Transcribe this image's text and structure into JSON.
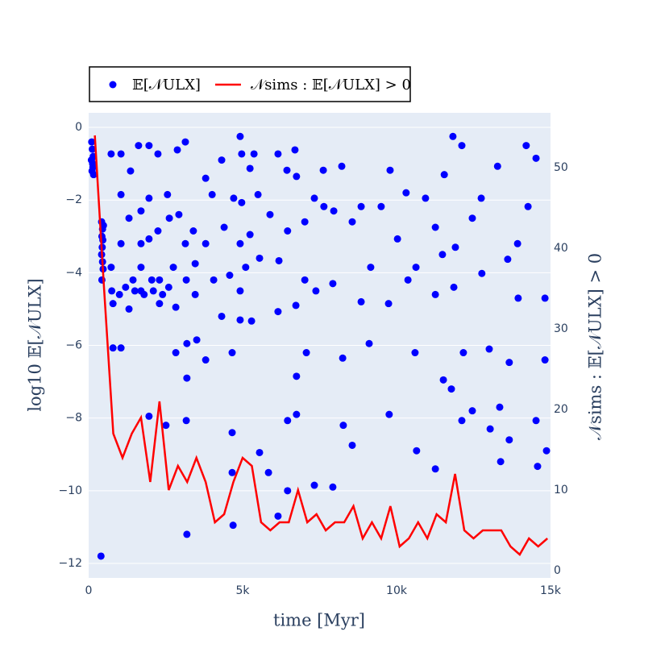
{
  "chart_data": {
    "type": "scatter",
    "xlabel": "time [Myr]",
    "ylabel": "log10 𝔼[𝒩ULX]",
    "y2label": "𝒩sims : 𝔼[𝒩ULX] > 0",
    "xlim": [
      0,
      15000
    ],
    "ylim": [
      -12.4,
      0.4
    ],
    "y2lim": [
      -0.9,
      56.8
    ],
    "xticks": [
      0,
      {
        "value": 5000,
        "label": "5k"
      },
      {
        "value": 10000,
        "label": "10k"
      },
      {
        "value": 15000,
        "label": "15k"
      }
    ],
    "yticks": [
      {
        "value": -12,
        "label": "−12"
      },
      {
        "value": -10,
        "label": "−10"
      },
      {
        "value": -8,
        "label": "−8"
      },
      {
        "value": -6,
        "label": "−6"
      },
      {
        "value": -4,
        "label": "−4"
      },
      {
        "value": -2,
        "label": "−2"
      },
      0
    ],
    "y2ticks": [
      0,
      10,
      20,
      30,
      40,
      50
    ],
    "grid": true,
    "legend": "top-left",
    "series": [
      {
        "name": "𝔼[𝒩ULX]",
        "type": "scatter",
        "color": "#0000ff",
        "x": [
          100,
          120,
          150,
          130,
          110,
          160,
          90,
          140,
          420,
          450,
          430,
          460,
          440,
          420,
          450,
          470,
          430,
          480,
          400,
          730,
          790,
          790,
          1050,
          730,
          1050,
          1050,
          1050,
          1310,
          1360,
          1440,
          1310,
          1620,
          1700,
          1700,
          1700,
          1700,
          1960,
          1960,
          1960,
          1960,
          2250,
          2250,
          2300,
          2300,
          2510,
          2560,
          2620,
          2750,
          2830,
          2830,
          2880,
          2930,
          3140,
          3140,
          3170,
          3170,
          3190,
          3190,
          3190,
          3400,
          3460,
          3460,
          3510,
          3800,
          3800,
          3800,
          4010,
          4060,
          4320,
          4320,
          4400,
          4580,
          4660,
          4660,
          4660,
          4690,
          4710,
          4920,
          4970,
          4920,
          4920,
          4920,
          4970,
          5100,
          5240,
          5240,
          5290,
          5370,
          5500,
          5550,
          5550,
          5840,
          5890,
          6150,
          6180,
          6150,
          6150,
          6440,
          6460,
          6460,
          6460,
          6700,
          6730,
          6750,
          6750,
          6750,
          7020,
          7020,
          7070,
          7330,
          7380,
          7330,
          7620,
          7640,
          7930,
          7960,
          7930,
          8220,
          8270,
          8250,
          8560,
          8560,
          8850,
          8850,
          9110,
          9160,
          9500,
          9740,
          9760,
          9790,
          10030,
          10310,
          10370,
          10600,
          10630,
          10650,
          10940,
          11260,
          11260,
          11260,
          11490,
          11520,
          11550,
          11780,
          11830,
          11860,
          11910,
          12120,
          12170,
          12120,
          12460,
          12460,
          12750,
          12770,
          13010,
          13040,
          13280,
          13350,
          13380,
          13610,
          13660,
          13660,
          13930,
          13950,
          14210,
          14270,
          14530,
          14530,
          14580,
          14820,
          14820,
          14870,
          750,
          1000,
          1200,
          1500,
          1800,
          2100,
          2400,
          2600,
          2050
        ],
        "values": [
          -0.4,
          -0.6,
          -0.8,
          -1.0,
          -1.2,
          -1.3,
          -0.9,
          -1.1,
          -2.6,
          -2.8,
          -3.0,
          -3.1,
          -3.3,
          -3.5,
          -3.7,
          -3.9,
          -4.2,
          -2.7,
          -11.8,
          -3.85,
          -4.85,
          -6.07,
          -6.07,
          -0.73,
          -0.73,
          -1.85,
          -3.2,
          -2.5,
          -1.2,
          -4.2,
          -5.0,
          -0.5,
          -3.85,
          -3.2,
          -2.3,
          -4.5,
          -0.5,
          -1.95,
          -3.07,
          -7.95,
          -0.73,
          -2.85,
          -4.2,
          -4.85,
          -8.2,
          -1.85,
          -2.5,
          -3.85,
          -4.95,
          -6.2,
          -0.62,
          -2.4,
          -0.4,
          -3.2,
          -4.2,
          -8.07,
          -6.9,
          -11.2,
          -5.95,
          -2.85,
          -3.75,
          -4.6,
          -5.85,
          -1.4,
          -3.2,
          -6.4,
          -1.85,
          -4.2,
          -5.2,
          -0.9,
          -2.75,
          -4.07,
          -6.2,
          -8.4,
          -9.5,
          -10.95,
          -1.95,
          -0.25,
          -2.07,
          -3.2,
          -4.5,
          -5.3,
          -0.73,
          -3.85,
          -1.13,
          -2.95,
          -5.33,
          -0.73,
          -1.85,
          -3.6,
          -8.95,
          -9.5,
          -2.4,
          -0.73,
          -3.67,
          -5.07,
          -10.7,
          -1.18,
          -2.85,
          -8.07,
          -10.0,
          -0.62,
          -4.9,
          -1.35,
          -7.9,
          -6.85,
          -4.2,
          -2.6,
          -6.2,
          -1.95,
          -4.5,
          -9.85,
          -1.18,
          -2.18,
          -4.3,
          -2.3,
          -9.9,
          -1.07,
          -8.2,
          -6.35,
          -2.6,
          -8.75,
          -4.8,
          -2.18,
          -5.95,
          -3.85,
          -2.18,
          -4.85,
          -7.9,
          -1.18,
          -3.07,
          -1.8,
          -4.2,
          -6.2,
          -3.85,
          -8.9,
          -1.95,
          -2.75,
          -4.6,
          -9.4,
          -3.5,
          -6.95,
          -1.3,
          -7.2,
          -0.25,
          -4.4,
          -3.3,
          -0.5,
          -6.2,
          -8.07,
          -2.5,
          -7.8,
          -1.95,
          -4.02,
          -6.1,
          -8.3,
          -1.07,
          -7.7,
          -9.2,
          -3.63,
          -8.6,
          -6.47,
          -3.2,
          -4.7,
          -0.5,
          -2.18,
          -0.85,
          -8.07,
          -9.33,
          -4.7,
          -6.4,
          -8.9,
          -4.5,
          -4.6,
          -4.4,
          -4.5,
          -4.6,
          -4.5,
          -4.6,
          -4.4,
          -4.2
        ]
      },
      {
        "name": "𝒩sims : 𝔼[𝒩ULX] > 0",
        "type": "line",
        "axis": "y2",
        "color": "#ff0000",
        "x": [
          200,
          500,
          800,
          1100,
          1400,
          1700,
          2000,
          2300,
          2600,
          2900,
          3200,
          3500,
          3800,
          4100,
          4400,
          4700,
          5000,
          5300,
          5600,
          5900,
          6200,
          6500,
          6800,
          7100,
          7400,
          7700,
          8000,
          8300,
          8600,
          8900,
          9200,
          9500,
          9800,
          10100,
          10400,
          10700,
          11000,
          11300,
          11600,
          11900,
          12200,
          12500,
          12800,
          13100,
          13400,
          13700,
          14000,
          14300,
          14600,
          14900
        ],
        "values": [
          54,
          35,
          17,
          14,
          17,
          19,
          11,
          21,
          10,
          13,
          11,
          14,
          11,
          6,
          7,
          11,
          14,
          13,
          6,
          5,
          6,
          6,
          10,
          6,
          7,
          5,
          6,
          6,
          8,
          4,
          6,
          4,
          8,
          3,
          4,
          6,
          4,
          7,
          6,
          12,
          5,
          4,
          5,
          5,
          5,
          3,
          2,
          4,
          3,
          4
        ]
      }
    ]
  }
}
